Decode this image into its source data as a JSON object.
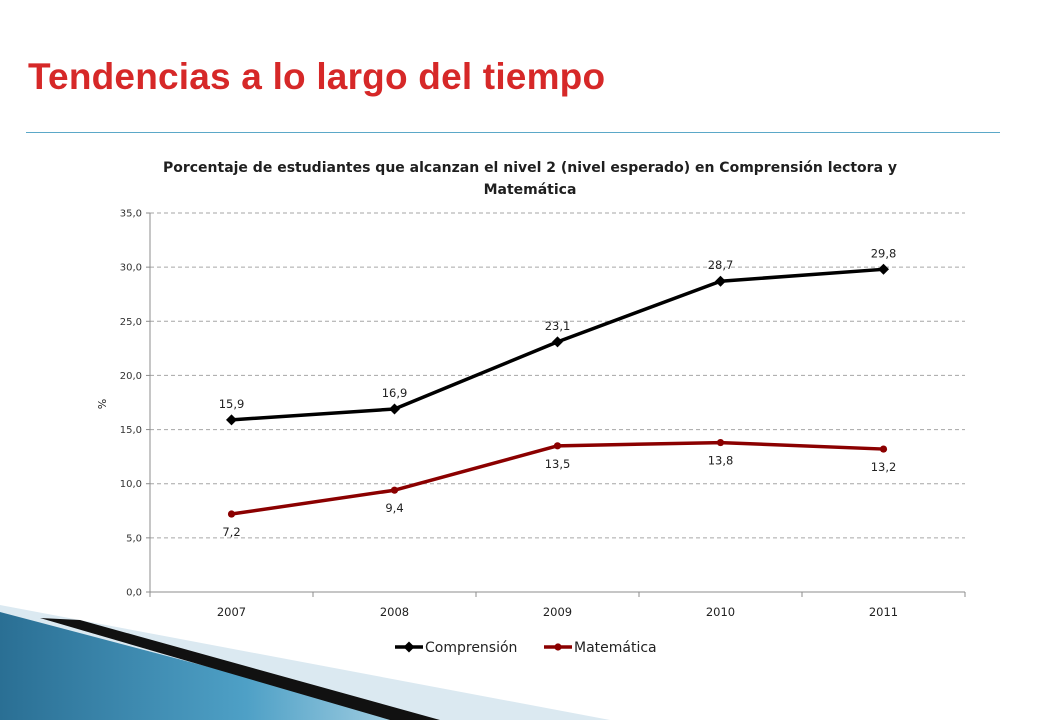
{
  "slide": {
    "title": "Tendencias a lo largo del tiempo"
  },
  "colors": {
    "title": "#d62828",
    "comprension": "#000000",
    "matematica": "#8b0000",
    "rule": "#5ba8c8"
  },
  "chart_data": {
    "type": "line",
    "title": "Porcentaje de estudiantes que alcanzan el nivel 2 (nivel esperado) en Comprensión lectora y Matemática",
    "xlabel": "",
    "ylabel": "%",
    "categories": [
      "2007",
      "2008",
      "2009",
      "2010",
      "2011"
    ],
    "ylim": [
      0,
      35
    ],
    "yticks": [
      0,
      5,
      10,
      15,
      20,
      25,
      30,
      35
    ],
    "ytick_labels": [
      "0,0",
      "5,0",
      "10,0",
      "15,0",
      "20,0",
      "25,0",
      "30,0",
      "35,0"
    ],
    "grid": true,
    "legend_position": "bottom",
    "series": [
      {
        "name": "Comprensión",
        "values": [
          15.9,
          16.9,
          23.1,
          28.7,
          29.8
        ],
        "labels": [
          "15,9",
          "16,9",
          "23,1",
          "28,7",
          "29,8"
        ],
        "color": "#000000",
        "marker": "diamond",
        "label_position": "above"
      },
      {
        "name": "Matemática",
        "values": [
          7.2,
          9.4,
          13.5,
          13.8,
          13.2
        ],
        "labels": [
          "7,2",
          "9,4",
          "13,5",
          "13,8",
          "13,2"
        ],
        "color": "#8b0000",
        "marker": "circle",
        "label_position": "below"
      }
    ]
  }
}
